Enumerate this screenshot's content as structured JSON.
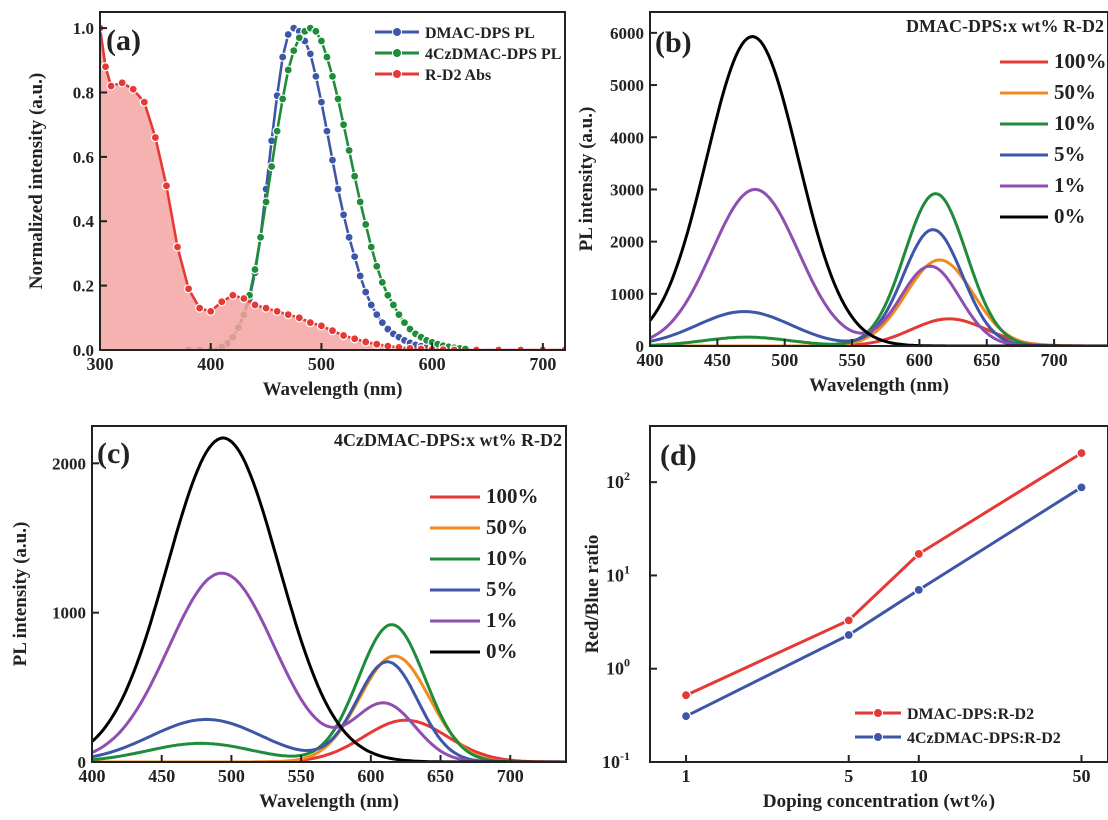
{
  "chart_data": [
    {
      "panel": "(a)",
      "type": "line",
      "xlabel": "Wavelength (nm)",
      "ylabel": "Normalized intensity (a.u.)",
      "xlim": [
        300,
        720
      ],
      "ylim": [
        0,
        1.05
      ],
      "xticks": [
        300,
        400,
        500,
        600,
        700
      ],
      "yticks": [
        0.0,
        0.2,
        0.4,
        0.6,
        0.8,
        1.0
      ],
      "ytick_labels": [
        "0.0",
        "0.2",
        "0.4",
        "0.6",
        "0.8",
        "1.0"
      ],
      "legend_position": "top-right",
      "series": [
        {
          "name": "DMAC-DPS PL",
          "color": "#3e56a8",
          "marker": "circle",
          "x": [
            380,
            390,
            400,
            410,
            415,
            420,
            425,
            430,
            435,
            440,
            445,
            450,
            455,
            460,
            465,
            470,
            475,
            480,
            485,
            490,
            495,
            500,
            505,
            510,
            515,
            520,
            525,
            530,
            535,
            540,
            545,
            550,
            555,
            560,
            565,
            570,
            575,
            580,
            585,
            590,
            595,
            600,
            605,
            610,
            615,
            620
          ],
          "y": [
            0.0,
            0.0,
            0.0,
            0.01,
            0.02,
            0.04,
            0.07,
            0.11,
            0.16,
            0.24,
            0.35,
            0.5,
            0.65,
            0.79,
            0.91,
            0.98,
            1.0,
            0.99,
            0.96,
            0.92,
            0.85,
            0.77,
            0.68,
            0.59,
            0.5,
            0.42,
            0.35,
            0.29,
            0.23,
            0.18,
            0.14,
            0.11,
            0.085,
            0.065,
            0.05,
            0.04,
            0.03,
            0.022,
            0.016,
            0.012,
            0.009,
            0.007,
            0.005,
            0.004,
            0.003,
            0.002
          ]
        },
        {
          "name": "4CzDMAC-DPS PL",
          "color": "#1e8c3a",
          "marker": "circle",
          "x": [
            400,
            410,
            420,
            425,
            430,
            435,
            440,
            445,
            450,
            455,
            460,
            465,
            470,
            475,
            480,
            485,
            490,
            495,
            500,
            505,
            510,
            515,
            520,
            525,
            530,
            535,
            540,
            545,
            550,
            555,
            560,
            565,
            570,
            575,
            580,
            585,
            590,
            595,
            600,
            605,
            610,
            615,
            620,
            625,
            630
          ],
          "y": [
            0.0,
            0.01,
            0.04,
            0.07,
            0.11,
            0.17,
            0.25,
            0.35,
            0.46,
            0.57,
            0.68,
            0.78,
            0.87,
            0.93,
            0.97,
            0.99,
            1.0,
            0.99,
            0.96,
            0.91,
            0.85,
            0.78,
            0.7,
            0.62,
            0.54,
            0.46,
            0.39,
            0.32,
            0.26,
            0.21,
            0.17,
            0.14,
            0.11,
            0.085,
            0.065,
            0.05,
            0.04,
            0.03,
            0.024,
            0.018,
            0.013,
            0.01,
            0.007,
            0.005,
            0.003
          ]
        },
        {
          "name": "R-D2 Abs",
          "color": "#e53935",
          "marker": "circle",
          "fill": "#f4a3a3",
          "x": [
            300,
            305,
            310,
            320,
            330,
            340,
            350,
            360,
            370,
            380,
            390,
            400,
            410,
            420,
            430,
            440,
            450,
            460,
            470,
            480,
            490,
            500,
            510,
            520,
            530,
            540,
            550,
            560,
            570,
            580,
            590,
            600,
            610,
            620,
            640,
            660,
            680,
            700,
            720
          ],
          "y": [
            1.0,
            0.88,
            0.82,
            0.83,
            0.81,
            0.77,
            0.66,
            0.51,
            0.32,
            0.19,
            0.13,
            0.12,
            0.15,
            0.17,
            0.16,
            0.14,
            0.13,
            0.12,
            0.11,
            0.1,
            0.085,
            0.075,
            0.06,
            0.045,
            0.035,
            0.025,
            0.018,
            0.012,
            0.008,
            0.005,
            0.003,
            0.002,
            0.001,
            0.0,
            0.0,
            0.0,
            0.0,
            0.0,
            0.0
          ]
        }
      ]
    },
    {
      "panel": "(b)",
      "type": "line",
      "xlabel": "Wavelength (nm)",
      "ylabel": "PL intensity (a.u.)",
      "xlim": [
        400,
        740
      ],
      "ylim": [
        0,
        6400
      ],
      "xticks": [
        400,
        450,
        500,
        550,
        600,
        650,
        700
      ],
      "yticks": [
        0,
        1000,
        2000,
        3000,
        4000,
        5000,
        6000
      ],
      "legend_title": "DMAC-DPS:x wt% R-D2",
      "legend_position": "top-right",
      "series": [
        {
          "name": "100%",
          "color": "#e53935",
          "blue_peak": 0,
          "blue_center": 478,
          "blue_width": 30,
          "red_peak": 520,
          "red_center": 622,
          "red_width": 28
        },
        {
          "name": "50%",
          "color": "#f28a1c",
          "blue_peak": 0,
          "blue_center": 478,
          "blue_width": 30,
          "red_peak": 1650,
          "red_center": 615,
          "red_width": 25
        },
        {
          "name": "10%",
          "color": "#1e8c3a",
          "blue_peak": 170,
          "blue_center": 472,
          "blue_width": 32,
          "red_peak": 2920,
          "red_center": 612,
          "red_width": 23
        },
        {
          "name": "5%",
          "color": "#3e56a8",
          "blue_peak": 660,
          "blue_center": 470,
          "blue_width": 35,
          "red_peak": 2230,
          "red_center": 610,
          "red_width": 22
        },
        {
          "name": "1%",
          "color": "#8e4fb0",
          "blue_peak": 3000,
          "blue_center": 478,
          "blue_width": 32,
          "red_peak": 1530,
          "red_center": 608,
          "red_width": 22
        },
        {
          "name": "0%",
          "color": "#000000",
          "blue_peak": 5930,
          "blue_center": 476,
          "blue_width": 34,
          "red_peak": 0,
          "red_center": 612,
          "red_width": 22
        }
      ]
    },
    {
      "panel": "(c)",
      "type": "line",
      "xlabel": "Wavelength (nm)",
      "ylabel": "PL intensity (a.u.)",
      "xlim": [
        400,
        740
      ],
      "ylim": [
        0,
        2250
      ],
      "xticks": [
        400,
        450,
        500,
        550,
        600,
        650,
        700
      ],
      "yticks": [
        0,
        1000,
        2000
      ],
      "legend_title": "4CzDMAC-DPS:x wt% R-D2",
      "legend_position": "top-right",
      "series": [
        {
          "name": "100%",
          "color": "#e53935",
          "blue_peak": 0,
          "blue_center": 495,
          "blue_width": 38,
          "red_peak": 280,
          "red_center": 625,
          "red_width": 30
        },
        {
          "name": "50%",
          "color": "#f28a1c",
          "blue_peak": 0,
          "blue_center": 495,
          "blue_width": 38,
          "red_peak": 710,
          "red_center": 617,
          "red_width": 25
        },
        {
          "name": "10%",
          "color": "#1e8c3a",
          "blue_peak": 125,
          "blue_center": 478,
          "blue_width": 38,
          "red_peak": 920,
          "red_center": 615,
          "red_width": 24
        },
        {
          "name": "5%",
          "color": "#3e56a8",
          "blue_peak": 285,
          "blue_center": 482,
          "blue_width": 40,
          "red_peak": 670,
          "red_center": 612,
          "red_width": 22
        },
        {
          "name": "1%",
          "color": "#8e4fb0",
          "blue_peak": 1265,
          "blue_center": 493,
          "blue_width": 38,
          "red_peak": 385,
          "red_center": 610,
          "red_width": 22
        },
        {
          "name": "0%",
          "color": "#000000",
          "blue_peak": 2170,
          "blue_center": 494,
          "blue_width": 40,
          "red_peak": 0,
          "red_center": 612,
          "red_width": 22
        }
      ]
    },
    {
      "panel": "(d)",
      "type": "line",
      "xlabel": "Doping concentration (wt%)",
      "ylabel": "Red/Blue ratio",
      "xscale": "log",
      "yscale": "log",
      "xlim": [
        0.7,
        65
      ],
      "ylim": [
        0.1,
        400
      ],
      "xticks": [
        1,
        5,
        10,
        50
      ],
      "yticks": [
        0.1,
        1,
        10,
        100
      ],
      "ytick_labels": [
        {
          "base": "10",
          "exp": "-1"
        },
        {
          "base": "10",
          "exp": "0"
        },
        {
          "base": "10",
          "exp": "1"
        },
        {
          "base": "10",
          "exp": "2"
        }
      ],
      "legend_position": "bottom-right",
      "series": [
        {
          "name": "DMAC-DPS:R-D2",
          "color": "#e53935",
          "marker": "circle",
          "x": [
            1,
            5,
            10,
            50
          ],
          "y": [
            0.52,
            3.3,
            17,
            205
          ]
        },
        {
          "name": "4CzDMAC-DPS:R-D2",
          "color": "#3e56a8",
          "marker": "circle",
          "x": [
            1,
            5,
            10,
            50
          ],
          "y": [
            0.31,
            2.3,
            7.0,
            88
          ]
        }
      ]
    }
  ]
}
